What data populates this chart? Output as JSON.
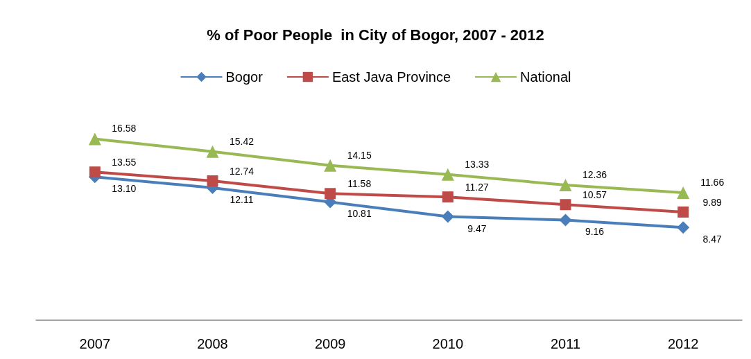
{
  "chart_data": {
    "type": "line",
    "title": "% of Poor People  in City of Bogor, 2007 - 2012",
    "categories": [
      "2007",
      "2008",
      "2009",
      "2010",
      "2011",
      "2012"
    ],
    "series": [
      {
        "name": "Bogor",
        "color": "#4a7ebb",
        "marker": "diamond",
        "values": [
          13.1,
          12.11,
          10.81,
          9.47,
          9.16,
          8.47
        ],
        "value_labels": [
          "13.10",
          "12.11",
          "10.81",
          "9.47",
          "9.16",
          "8.47"
        ]
      },
      {
        "name": "East Java Province",
        "color": "#be4b48",
        "marker": "square",
        "values": [
          13.55,
          12.74,
          11.58,
          11.27,
          10.57,
          9.89
        ],
        "value_labels": [
          "13.55",
          "12.74",
          "11.58",
          "11.27",
          "10.57",
          "9.89"
        ]
      },
      {
        "name": "National",
        "color": "#98b954",
        "marker": "triangle",
        "values": [
          16.58,
          15.42,
          14.15,
          13.33,
          12.36,
          11.66
        ],
        "value_labels": [
          "16.58",
          "15.42",
          "14.15",
          "13.33",
          "12.36",
          "11.66"
        ]
      }
    ],
    "legend": "top",
    "line_style": "solid"
  }
}
